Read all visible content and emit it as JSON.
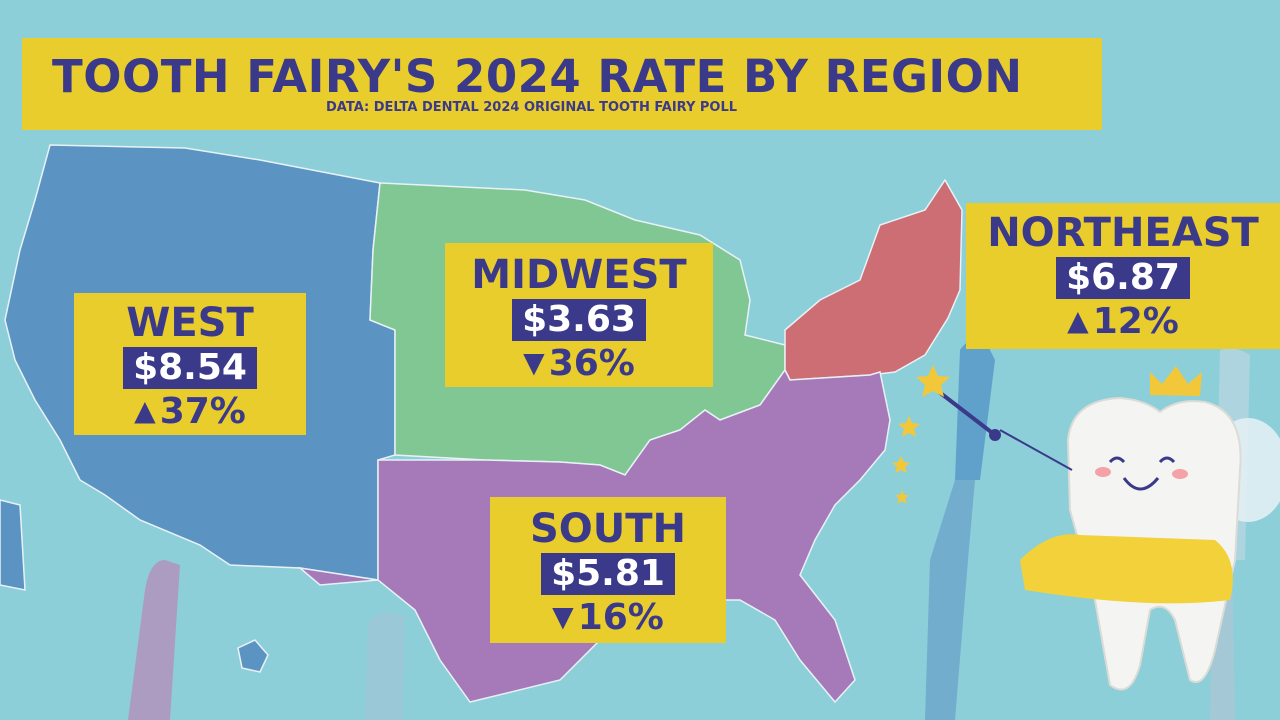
{
  "title": "TOOTH FAIRY'S 2024 RATE BY REGION",
  "subtitle": "DATA: DELTA DENTAL 2024 ORIGINAL TOOTH FAIRY POLL",
  "colors": {
    "background": "#8ccfd9",
    "banner": "#e9cd2c",
    "text": "#3b3a8a",
    "west": "#5b93c2",
    "midwest": "#80c794",
    "south": "#a679b8",
    "northeast": "#cc6e74"
  },
  "regions": [
    {
      "name": "WEST",
      "amount": "$8.54",
      "direction": "up",
      "arrow": "▲",
      "change": "37%"
    },
    {
      "name": "MIDWEST",
      "amount": "$3.63",
      "direction": "down",
      "arrow": "▼",
      "change": "36%"
    },
    {
      "name": "NORTHEAST",
      "amount": "$6.87",
      "direction": "up",
      "arrow": "▲",
      "change": "12%"
    },
    {
      "name": "SOUTH",
      "amount": "$5.81",
      "direction": "down",
      "arrow": "▼",
      "change": "16%"
    }
  ],
  "decorations": [
    "toothbrush-icon",
    "tooth-fairy-mascot-icon",
    "magic-wand-icon",
    "crown-icon",
    "sparkle-star-icon"
  ]
}
